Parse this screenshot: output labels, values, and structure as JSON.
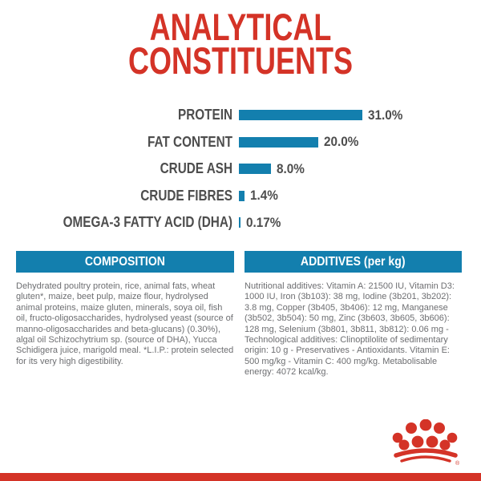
{
  "page": {
    "background": "#ffffff",
    "brand_red": "#d43327",
    "accent_blue": "#137fae",
    "label_grey": "#4d4d4d",
    "body_grey": "#6d6e71"
  },
  "title": {
    "line1": "ANALYTICAL",
    "line2": "CONSTITUENTS"
  },
  "chart_data": {
    "type": "bar",
    "orientation": "horizontal",
    "title": "ANALYTICAL CONSTITUENTS",
    "unit": "%",
    "categories": [
      "PROTEIN",
      "FAT CONTENT",
      "CRUDE ASH",
      "CRUDE FIBRES",
      "OMEGA-3 FATTY ACID (DHA)"
    ],
    "values": [
      31.0,
      20.0,
      8.0,
      1.4,
      0.17
    ],
    "value_labels": [
      "31.0%",
      "20.0%",
      "8.0%",
      "1.4%",
      "0.17%"
    ],
    "bar_color": "#137fae",
    "xlim": [
      0,
      31
    ],
    "grid": false,
    "legend": false
  },
  "composition": {
    "header": "COMPOSITION",
    "body": "Dehydrated poultry protein, rice, animal fats, wheat gluten*, maize, beet pulp, maize flour, hydrolysed animal proteins, maize gluten, minerals, soya oil, fish oil, fructo-oligosaccharides, hydrolysed yeast (source of manno-oligosaccharides and beta-glucans) (0.30%), algal oil Schizochytrium sp. (source of DHA), Yucca Schidigera juice, marigold meal. *L.I.P.: protein selected for its very high digestibility."
  },
  "additives": {
    "header": "ADDITIVES (per kg)",
    "body": "Nutritional additives: Vitamin A: 21500 IU, Vitamin D3: 1000 IU, Iron (3b103): 38 mg, Iodine (3b201, 3b202): 3.8 mg, Copper (3b405, 3b406): 12 mg, Manganese (3b502, 3b504): 50 mg, Zinc (3b603, 3b605, 3b606): 128 mg, Selenium (3b801, 3b811, 3b812): 0.06 mg - Technological additives: Clinoptilolite of sedimentary origin: 10 g - Preservatives - Antioxidants. Vitamin E: 500 mg/kg - Vitamin C: 400 mg/kg. Metabolisable energy: 4072 kcal/kg."
  },
  "footer": {
    "logo_icon": "royal-canin-crown-logo",
    "registered_mark": "®"
  }
}
